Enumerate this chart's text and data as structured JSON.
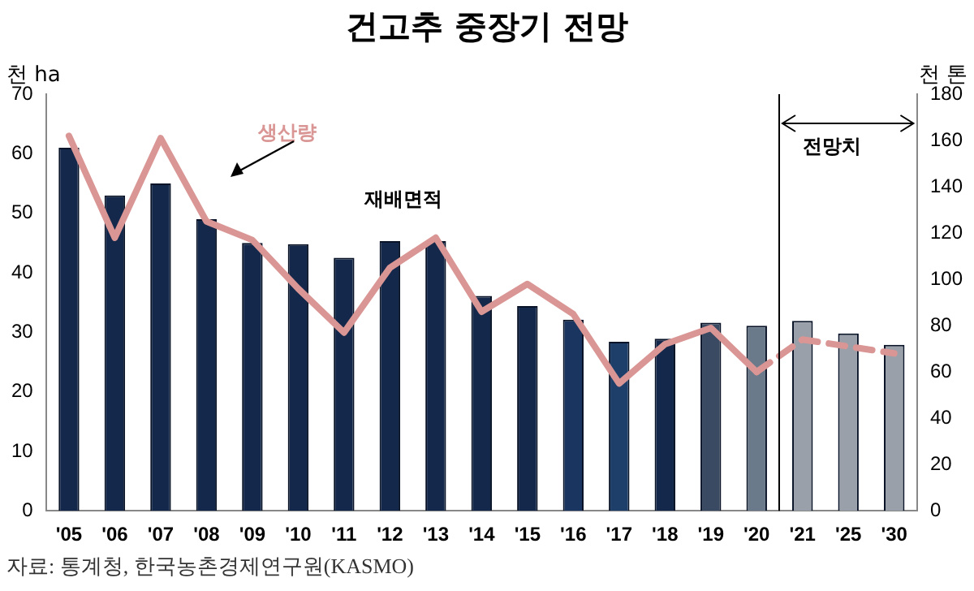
{
  "chart_data": {
    "type": "bar",
    "title": "건고추 중장기 전망",
    "ylabel": "천 ha",
    "y2label": "천 톤",
    "categories": [
      "'05",
      "'06",
      "'07",
      "'08",
      "'09",
      "'10",
      "'11",
      "'12",
      "'13",
      "'14",
      "'15",
      "'16",
      "'17",
      "'18",
      "'19",
      "'20",
      "'21",
      "'25",
      "'30"
    ],
    "series": [
      {
        "name": "재배면적",
        "color": "#0a1428",
        "colors": [
          "#14284b",
          "#14284b",
          "#14284b",
          "#14284b",
          "#14284b",
          "#14284b",
          "#14284b",
          "#14284b",
          "#14284b",
          "#14284b",
          "#14284b",
          "#1a3560",
          "#1f3f6b",
          "#14284b",
          "#3b4a63",
          "#6b7a8a",
          "#9aa0aa",
          "#9aa0aa",
          "#9aa0aa"
        ],
        "values": [
          61,
          53,
          55,
          49,
          45,
          44.8,
          42.5,
          45.3,
          45.3,
          36.1,
          34.4,
          32.1,
          28.4,
          28.9,
          31.6,
          31.1,
          31.9,
          29.8,
          27.9
        ]
      },
      {
        "name": "생산량",
        "type": "line",
        "axis": "y2",
        "color": "#d99694",
        "line_style": "solid",
        "values": [
          162,
          118,
          161,
          125,
          117,
          96,
          77,
          105,
          118,
          86,
          98,
          85,
          55,
          72,
          79,
          60,
          null,
          null,
          null
        ]
      },
      {
        "type": "line",
        "axis": "y2",
        "color": "#d99694",
        "line_style": "dashed",
        "values": [
          null,
          null,
          null,
          null,
          null,
          null,
          null,
          null,
          null,
          null,
          null,
          null,
          null,
          null,
          null,
          60,
          74,
          71,
          68
        ]
      }
    ],
    "ylim": [
      0,
      70
    ],
    "yticks": [
      0,
      10,
      20,
      30,
      40,
      50,
      60,
      70
    ],
    "y2lim": [
      0,
      180
    ],
    "y2ticks": [
      0,
      20,
      40,
      60,
      80,
      100,
      120,
      140,
      160,
      180
    ],
    "grid": false,
    "legend": false,
    "marker": "none",
    "annotations": [
      "전망치",
      "자료: 통계청, 한국농촌경제연구원(KASMO)"
    ]
  }
}
